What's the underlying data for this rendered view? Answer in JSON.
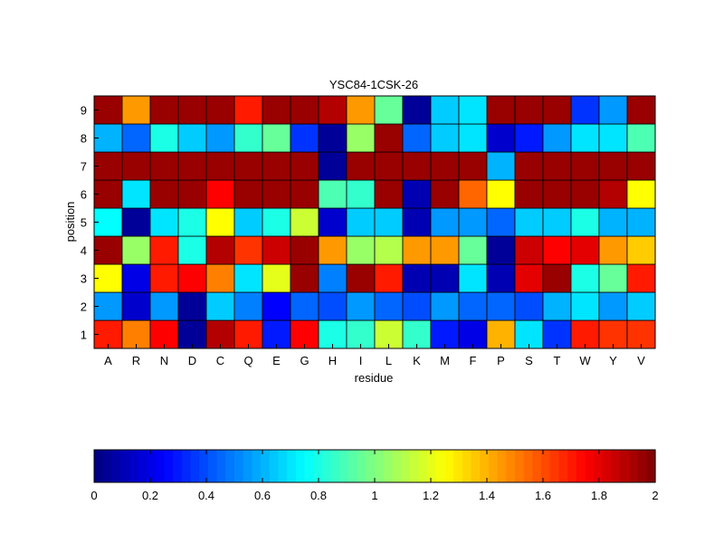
{
  "chart_data": {
    "type": "heatmap",
    "title": "YSC84-1CSK-26",
    "xlabel": "residue",
    "ylabel": "position",
    "x_categories": [
      "A",
      "R",
      "N",
      "D",
      "C",
      "Q",
      "E",
      "G",
      "H",
      "I",
      "L",
      "K",
      "M",
      "F",
      "P",
      "S",
      "T",
      "W",
      "Y",
      "V"
    ],
    "y_categories": [
      "1",
      "2",
      "3",
      "4",
      "5",
      "6",
      "7",
      "8",
      "9"
    ],
    "colormap": "jet",
    "clim": [
      0,
      2
    ],
    "colorbar": {
      "orientation": "horizontal",
      "placement": "bottom",
      "ticks": [
        0,
        0.2,
        0.4,
        0.6,
        0.8,
        1,
        1.2,
        1.4,
        1.6,
        1.8,
        2
      ],
      "tick_labels": [
        "0",
        "0.2",
        "0.4",
        "0.6",
        "0.8",
        "1",
        "1.2",
        "1.4",
        "1.6",
        "1.8",
        "2"
      ]
    },
    "values": [
      [
        1.7,
        1.5,
        1.75,
        0.05,
        1.9,
        1.7,
        0.3,
        1.75,
        0.8,
        0.85,
        1.15,
        0.85,
        0.3,
        0.2,
        1.4,
        0.7,
        0.35,
        1.7,
        1.65,
        1.65
      ],
      [
        0.55,
        0.15,
        0.55,
        0.05,
        0.65,
        0.5,
        0.25,
        0.45,
        0.4,
        0.55,
        0.45,
        0.4,
        0.55,
        0.45,
        0.45,
        0.4,
        0.6,
        0.7,
        0.55,
        0.65
      ],
      [
        1.25,
        0.2,
        1.7,
        1.75,
        1.5,
        0.7,
        1.2,
        1.95,
        0.5,
        1.95,
        1.7,
        0.1,
        0.1,
        0.7,
        0.1,
        1.8,
        1.95,
        0.8,
        0.95,
        1.7
      ],
      [
        1.95,
        1.05,
        1.7,
        0.8,
        1.9,
        1.65,
        1.85,
        1.95,
        1.45,
        1.05,
        1.1,
        1.45,
        1.45,
        0.95,
        0.05,
        1.85,
        1.75,
        1.8,
        1.45,
        1.35
      ],
      [
        0.75,
        0.05,
        0.7,
        0.8,
        1.25,
        0.65,
        0.8,
        1.15,
        0.15,
        0.65,
        0.65,
        0.1,
        0.55,
        0.55,
        0.45,
        0.65,
        0.65,
        0.8,
        0.6,
        0.6
      ],
      [
        1.95,
        0.7,
        1.95,
        1.95,
        1.75,
        1.95,
        1.95,
        1.95,
        0.9,
        0.85,
        1.95,
        0.1,
        1.95,
        1.55,
        1.25,
        1.95,
        1.95,
        1.95,
        1.9,
        1.25
      ],
      [
        1.95,
        1.95,
        1.95,
        1.95,
        1.95,
        1.95,
        1.95,
        1.95,
        0.05,
        1.95,
        1.95,
        1.95,
        1.95,
        1.95,
        0.6,
        1.95,
        1.95,
        1.95,
        1.95,
        1.95
      ],
      [
        0.6,
        0.45,
        0.8,
        0.65,
        0.55,
        0.85,
        0.95,
        0.35,
        0.05,
        1.05,
        1.95,
        0.45,
        0.65,
        0.7,
        0.15,
        0.3,
        0.55,
        0.7,
        0.7,
        0.9
      ],
      [
        1.95,
        1.45,
        1.95,
        1.95,
        1.95,
        1.7,
        1.95,
        1.95,
        1.9,
        1.45,
        0.95,
        0.05,
        0.65,
        0.7,
        1.95,
        1.95,
        1.95,
        0.35,
        0.55,
        1.95
      ]
    ]
  }
}
